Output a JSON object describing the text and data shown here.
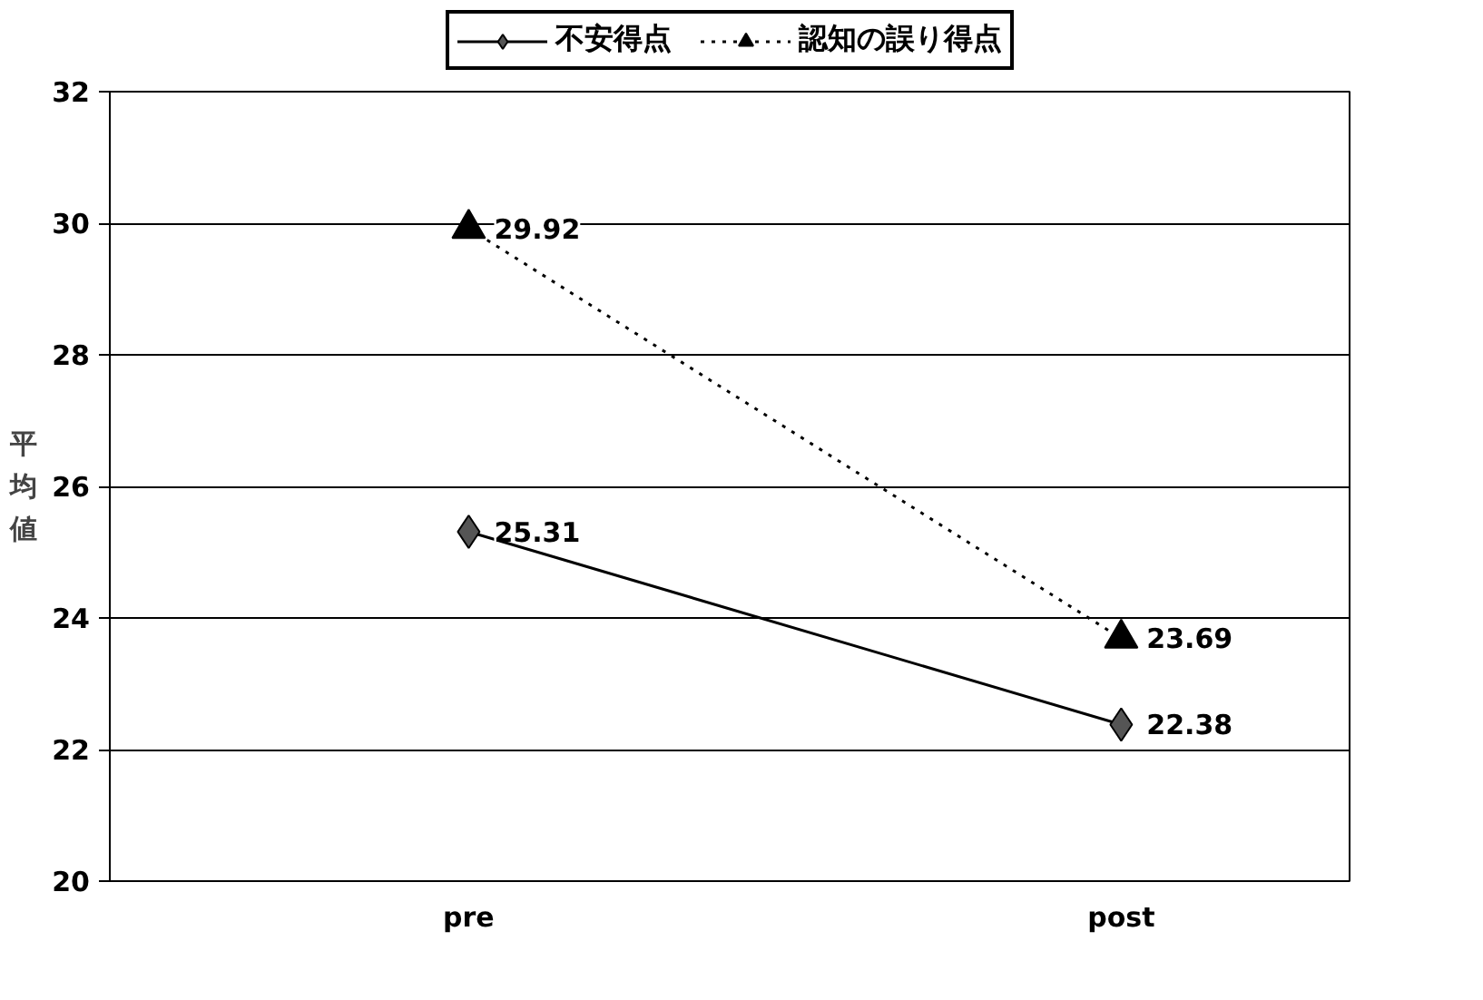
{
  "chart_data": {
    "type": "line",
    "categories": [
      "pre",
      "post"
    ],
    "ylabel": "平均値",
    "ylim": [
      20,
      32
    ],
    "yticks": [
      20,
      22,
      24,
      26,
      28,
      30,
      32
    ],
    "grid": "y",
    "legend": "top",
    "data_labels": true,
    "series": [
      {
        "name": "不安得点",
        "color": "#000000",
        "marker": "diamond",
        "line_style": "solid",
        "values": [
          25.31,
          22.38
        ]
      },
      {
        "name": "認知の誤り得点",
        "color": "#000000",
        "marker": "triangle",
        "line_style": "dotted",
        "values": [
          29.92,
          23.69
        ]
      }
    ]
  }
}
